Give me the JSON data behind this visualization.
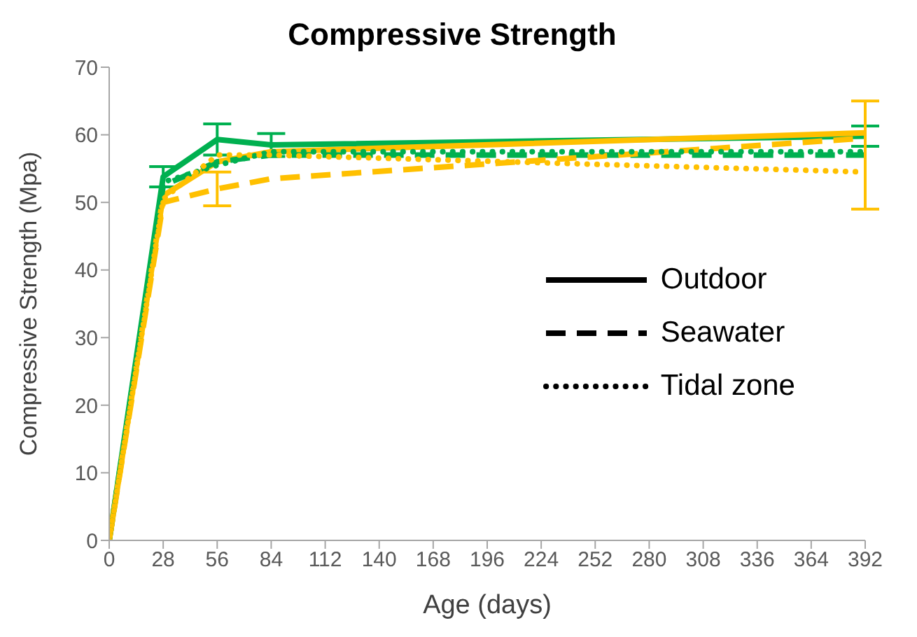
{
  "chart_data": {
    "type": "line",
    "title": "Compressive Strength",
    "xlabel": "Age (days)",
    "ylabel": "Compressive Strength (Mpa)",
    "x": [
      0,
      28,
      56,
      84,
      392
    ],
    "xlim": [
      0,
      392
    ],
    "xticks": [
      0,
      28,
      56,
      84,
      112,
      140,
      168,
      196,
      224,
      252,
      280,
      308,
      336,
      364,
      392
    ],
    "ylim": [
      0,
      70
    ],
    "yticks": [
      0,
      10,
      20,
      30,
      40,
      50,
      60,
      70
    ],
    "legend": "right",
    "marker": "none",
    "series": [
      {
        "color": "#00b050",
        "line_style": "solid",
        "values": [
          0,
          53.8,
          59.3,
          58.5,
          59.8
        ],
        "errors": [
          null,
          1.5,
          2.3,
          1.7,
          1.5
        ]
      },
      {
        "color": "#ffc000",
        "line_style": "solid",
        "values": [
          0,
          51,
          56,
          57.5,
          60.3
        ]
      },
      {
        "color": "#00b050",
        "line_style": "dashed",
        "values": [
          0,
          52.5,
          56,
          57,
          57
        ]
      },
      {
        "color": "#ffc000",
        "line_style": "dashed",
        "values": [
          0,
          50,
          52,
          53.5,
          59.5
        ],
        "errors": [
          null,
          null,
          2.5,
          null,
          null
        ]
      },
      {
        "color": "#00b050",
        "line_style": "dotted",
        "values": [
          0,
          53,
          55.5,
          57.5,
          57.5
        ]
      },
      {
        "color": "#ffc000",
        "line_style": "dotted",
        "values": [
          0,
          50.5,
          57,
          57,
          54.5
        ],
        "errors": [
          null,
          null,
          null,
          null,
          [
            49,
            65
          ]
        ]
      },
      {
        "name": "Outdoor",
        "color": "#000000",
        "line_style": "solid",
        "values": [
          null,
          null,
          null,
          null,
          null
        ]
      },
      {
        "name": "Seawater",
        "color": "#000000",
        "line_style": "dashed",
        "values": [
          null,
          null,
          null,
          null,
          null
        ]
      },
      {
        "name": "Tidal zone",
        "color": "#000000",
        "line_style": "dotted",
        "values": [
          null,
          null,
          null,
          null,
          null
        ]
      }
    ]
  }
}
